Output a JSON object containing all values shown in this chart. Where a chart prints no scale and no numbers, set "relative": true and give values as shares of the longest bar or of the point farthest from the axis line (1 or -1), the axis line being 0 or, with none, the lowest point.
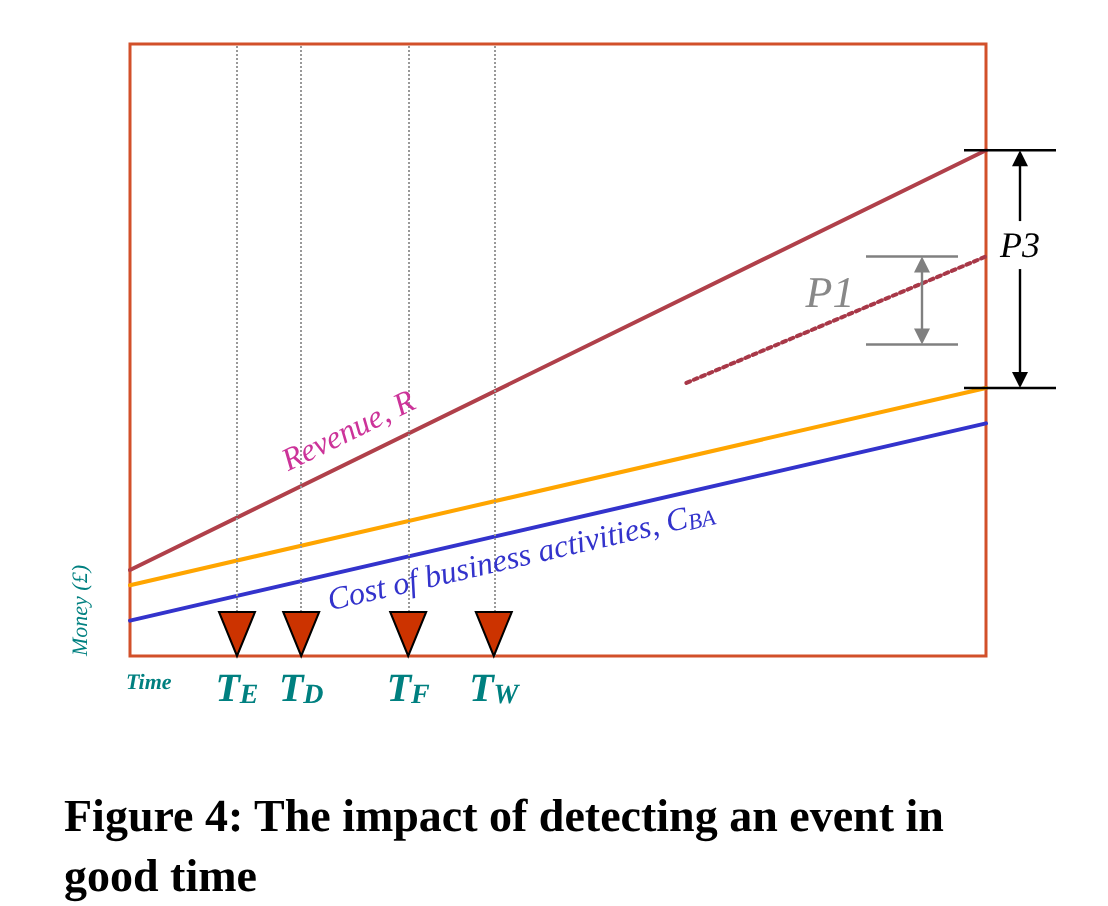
{
  "chart_data": {
    "type": "line",
    "title": "Figure 4: The impact of detecting an event in good time",
    "xlabel": "Time",
    "ylabel": "Money (£)",
    "relative": true,
    "tick_labels": "x",
    "grid": false,
    "marker": "none",
    "categories": [
      null,
      null,
      null,
      null,
      null,
      "T$_{E}$",
      null,
      null,
      "T$_{D}$",
      null,
      null,
      null,
      null,
      "T$_{F}$",
      null,
      null,
      null,
      "T$_{W}$",
      null,
      null,
      null,
      null,
      null,
      null,
      null,
      null,
      null,
      null,
      null,
      null,
      null,
      null,
      null,
      null,
      null,
      null,
      null,
      null,
      null,
      null,
      null
    ],
    "series": [
      {
        "name": "Revenue, R",
        "color": "#b0404a",
        "values": [
          0.17,
          null,
          null,
          null,
          null,
          null,
          null,
          null,
          null,
          null,
          null,
          null,
          null,
          null,
          null,
          null,
          null,
          null,
          null,
          null,
          null,
          null,
          null,
          null,
          null,
          null,
          null,
          null,
          null,
          null,
          null,
          null,
          null,
          null,
          null,
          null,
          null,
          null,
          null,
          null,
          1
        ]
      },
      {
        "color": "#ffa500",
        "values": [
          0.14,
          null,
          null,
          null,
          null,
          null,
          null,
          null,
          null,
          null,
          null,
          null,
          null,
          null,
          null,
          null,
          null,
          null,
          null,
          null,
          null,
          null,
          null,
          null,
          null,
          null,
          null,
          null,
          null,
          null,
          null,
          null,
          null,
          null,
          null,
          null,
          null,
          null,
          null,
          null,
          0.53
        ]
      },
      {
        "name": "Cost of business activities, C$_{BA}$",
        "color": "#3333cc",
        "values": [
          0.07,
          null,
          null,
          null,
          null,
          null,
          null,
          null,
          null,
          null,
          null,
          null,
          null,
          null,
          null,
          null,
          null,
          null,
          null,
          null,
          null,
          null,
          null,
          null,
          null,
          null,
          null,
          null,
          null,
          null,
          null,
          null,
          null,
          null,
          null,
          null,
          null,
          null,
          null,
          null,
          0.46
        ]
      },
      {
        "color": "#a83848",
        "line_style": "dotted",
        "values": [
          null,
          null,
          null,
          null,
          null,
          null,
          null,
          null,
          null,
          null,
          null,
          null,
          null,
          null,
          null,
          null,
          null,
          null,
          null,
          null,
          null,
          null,
          null,
          null,
          null,
          null,
          0.54,
          null,
          null,
          null,
          null,
          null,
          null,
          null,
          null,
          null,
          null,
          null,
          null,
          null,
          0.79
        ]
      }
    ],
    "ref_lines": [
      {
        "axis": "x",
        "value": "T$_{E}$",
        "color": "#999999",
        "line_style": "dotted"
      },
      {
        "axis": "x",
        "value": "T$_{D}$",
        "color": "#999999",
        "line_style": "dotted"
      },
      {
        "axis": "x",
        "value": "T$_{F}$",
        "color": "#999999",
        "line_style": "dotted"
      },
      {
        "axis": "x",
        "value": "T$_{W}$",
        "color": "#999999",
        "line_style": "dotted"
      }
    ],
    "annotations": [
      "P1",
      "P3"
    ]
  }
}
